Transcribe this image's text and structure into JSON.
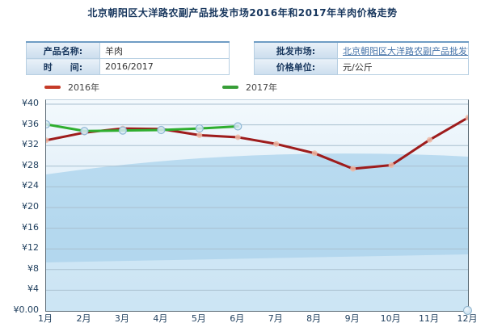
{
  "title": "北京朝阳区大洋路农副产品批发市场2016年和2017年羊肉价格走势",
  "info": {
    "left": {
      "rows": [
        {
          "label": "产品名称:",
          "value": "羊肉"
        },
        {
          "label": "时　　间:",
          "value": "2016/2017"
        }
      ]
    },
    "right": {
      "rows": [
        {
          "label": "批发市场:",
          "value": "北京朝阳区大洋路农副产品批发市场"
        },
        {
          "label": "价格单位:",
          "value": "元/公斤"
        }
      ]
    }
  },
  "legend": {
    "items": [
      {
        "label": "2016年",
        "color": "#c53b28"
      },
      {
        "label": "2017年",
        "color": "#379e37"
      }
    ]
  },
  "chart_data": {
    "type": "line",
    "title": "北京朝阳区大洋路农副产品批发市场2016年和2017年羊肉价格走势",
    "unit": "元/公斤",
    "x": [
      "1月",
      "2月",
      "3月",
      "4月",
      "5月",
      "6月",
      "7月",
      "8月",
      "9月",
      "10月",
      "11月",
      "12月"
    ],
    "series": [
      {
        "name": "2016年",
        "color": "#9e1c1c",
        "marker_fill": "#efb9a5",
        "marker_stroke": "none",
        "marker_radius": 3.5,
        "values": [
          33.0,
          34.5,
          35.3,
          35.2,
          34.0,
          33.6,
          32.3,
          30.5,
          27.5,
          28.2,
          33.1,
          37.4
        ]
      },
      {
        "name": "2017年",
        "color": "#2fae2f",
        "marker_fill": "#d7e9f6",
        "marker_stroke": "#90b8d4",
        "marker_radius": 4.5,
        "values": [
          36.1,
          34.8,
          34.9,
          35.0,
          35.3,
          35.7
        ]
      }
    ],
    "yticks": [
      {
        "label": "¥40",
        "value": 40
      },
      {
        "label": "¥36",
        "value": 36
      },
      {
        "label": "¥32",
        "value": 32
      },
      {
        "label": "¥28",
        "value": 28
      },
      {
        "label": "¥24",
        "value": 24
      },
      {
        "label": "¥20",
        "value": 20
      },
      {
        "label": "¥16",
        "value": 16
      },
      {
        "label": "¥12",
        "value": 12
      },
      {
        "label": "¥8",
        "value": 8
      },
      {
        "label": "¥4",
        "value": 4
      },
      {
        "label": "¥0.00",
        "value": 0
      }
    ],
    "ylim": [
      0,
      40.8
    ],
    "grid": true,
    "legend_position": "top-left"
  }
}
